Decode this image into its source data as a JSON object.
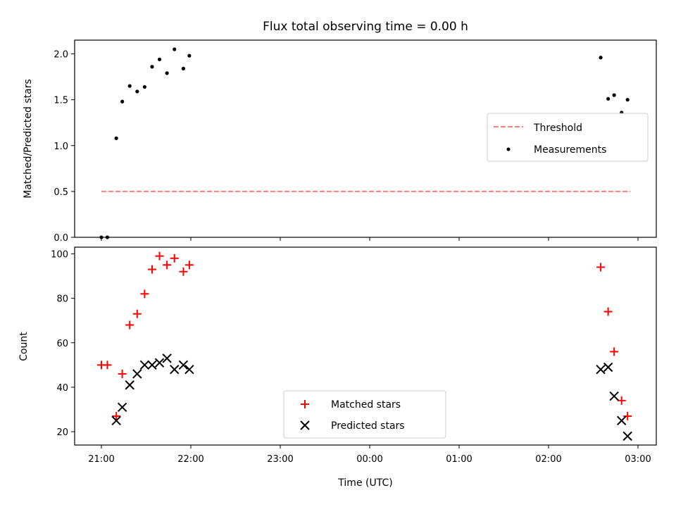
{
  "chart_data": [
    {
      "type": "scatter",
      "title": "Flux total observing time = 0.00 h",
      "xlabel": "",
      "ylabel": "Matched/Predicted stars",
      "ylim": [
        0,
        2.15
      ],
      "xlim": [
        "20:48",
        "03:13"
      ],
      "yticks": [
        0.0,
        0.5,
        1.0,
        1.5,
        2.0
      ],
      "ytick_labels": [
        "0.0",
        "0.5",
        "1.0",
        "1.5",
        "2.0"
      ],
      "grid": false,
      "legend_position": "center-right",
      "threshold": {
        "name": "Threshold",
        "value": 0.5,
        "x_start": "21:00",
        "x_end": "02:55",
        "color": "#ff7f7f"
      },
      "series": [
        {
          "name": "Measurements",
          "color": "#000000",
          "x": [
            "21:00",
            "21:04",
            "21:10",
            "21:14",
            "21:19",
            "21:24",
            "21:29",
            "21:34",
            "21:39",
            "21:44",
            "21:49",
            "21:55",
            "21:59",
            "02:35",
            "02:40",
            "02:44",
            "02:49",
            "02:53"
          ],
          "y": [
            0.0,
            0.0,
            1.08,
            1.48,
            1.65,
            1.59,
            1.64,
            1.86,
            1.94,
            1.79,
            2.05,
            1.84,
            1.98,
            1.96,
            1.51,
            1.55,
            1.36,
            1.5
          ]
        }
      ]
    },
    {
      "type": "scatter",
      "title": "",
      "xlabel": "Time (UTC)",
      "ylabel": "Count",
      "ylim": [
        14,
        103
      ],
      "yticks": [
        20,
        40,
        60,
        80,
        100
      ],
      "ytick_labels": [
        "20",
        "40",
        "60",
        "80",
        "100"
      ],
      "xticks": [
        "21:00",
        "22:00",
        "23:00",
        "00:00",
        "01:00",
        "02:00",
        "03:00"
      ],
      "xtick_labels": [
        "21:00",
        "22:00",
        "23:00",
        "00:00",
        "01:00",
        "02:00",
        "03:00"
      ],
      "grid": false,
      "legend_position": "bottom-center",
      "series": [
        {
          "name": "Matched stars",
          "marker": "+",
          "color": "#ff0000",
          "x": [
            "21:00",
            "21:04",
            "21:10",
            "21:14",
            "21:19",
            "21:24",
            "21:29",
            "21:34",
            "21:39",
            "21:44",
            "21:49",
            "21:55",
            "21:59",
            "02:35",
            "02:40",
            "02:44",
            "02:49",
            "02:53"
          ],
          "y": [
            50,
            50,
            27,
            46,
            68,
            73,
            82,
            93,
            99,
            95,
            98,
            92,
            95,
            94,
            74,
            56,
            34,
            27
          ]
        },
        {
          "name": "Predicted stars",
          "marker": "x",
          "color": "#000000",
          "x": [
            "21:10",
            "21:14",
            "21:19",
            "21:24",
            "21:29",
            "21:34",
            "21:39",
            "21:44",
            "21:49",
            "21:55",
            "21:59",
            "02:35",
            "02:40",
            "02:44",
            "02:49",
            "02:53"
          ],
          "y": [
            25,
            31,
            41,
            46,
            50,
            50,
            51,
            53,
            48,
            50,
            48,
            48,
            49,
            36,
            25,
            18
          ]
        }
      ]
    }
  ]
}
